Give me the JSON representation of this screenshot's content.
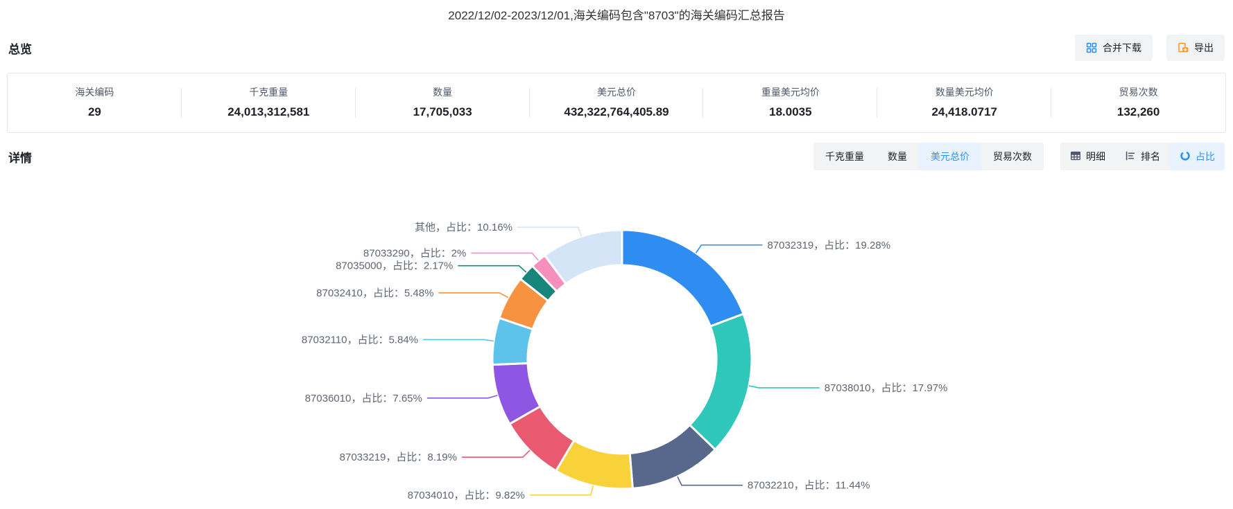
{
  "title": "2022/12/02-2023/12/01,海关编码包含\"8703\"的海关编码汇总报告",
  "overview": {
    "heading": "总览",
    "merge_download_label": "合并下载",
    "export_label": "导出",
    "stats": [
      {
        "label": "海关编码",
        "value": "29"
      },
      {
        "label": "千克重量",
        "value": "24,013,312,581"
      },
      {
        "label": "数量",
        "value": "17,705,033"
      },
      {
        "label": "美元总价",
        "value": "432,322,764,405.89"
      },
      {
        "label": "重量美元均价",
        "value": "18.0035"
      },
      {
        "label": "数量美元均价",
        "value": "24,418.0717"
      },
      {
        "label": "贸易次数",
        "value": "132,260"
      }
    ]
  },
  "detail": {
    "heading": "详情",
    "metric_tabs": [
      {
        "label": "千克重量",
        "active": false
      },
      {
        "label": "数量",
        "active": false
      },
      {
        "label": "美元总价",
        "active": true
      },
      {
        "label": "贸易次数",
        "active": false
      }
    ],
    "view_tabs": [
      {
        "label": "明细",
        "icon": "table-icon",
        "active": false
      },
      {
        "label": "排名",
        "icon": "ranking-icon",
        "active": false
      },
      {
        "label": "占比",
        "icon": "pie-icon",
        "active": true
      }
    ]
  },
  "colors": {
    "accent": "#3491fa",
    "tab_bg": "#f2f3f5",
    "tab_active_bg": "#e8f3ff",
    "card_border": "#e5e6eb",
    "export_icon": "#ff9a2e",
    "chart_label_text": "#5e6673"
  },
  "chart_data": {
    "type": "pie",
    "donut": true,
    "start_angle_deg": 0,
    "clockwise": true,
    "legend_position": "none",
    "value_unit": "percent",
    "slices": [
      {
        "name": "87032319",
        "value": 19.28,
        "color": "#2f8df2",
        "label": "87032319，占比：19.28%"
      },
      {
        "name": "87038010",
        "value": 17.97,
        "color": "#2fc7b9",
        "label": "87038010，占比：17.97%"
      },
      {
        "name": "87032210",
        "value": 11.44,
        "color": "#57688c",
        "label": "87032210，占比：11.44%"
      },
      {
        "name": "87034010",
        "value": 9.82,
        "color": "#f9d239",
        "label": "87034010，占比：9.82%"
      },
      {
        "name": "87033219",
        "value": 8.19,
        "color": "#e95a71",
        "label": "87033219，占比：8.19%"
      },
      {
        "name": "87036010",
        "value": 7.65,
        "color": "#8f55e3",
        "label": "87036010，占比：7.65%"
      },
      {
        "name": "87032110",
        "value": 5.84,
        "color": "#5ec3ea",
        "label": "87032110，占比：5.84%"
      },
      {
        "name": "87032410",
        "value": 5.48,
        "color": "#f79240",
        "label": "87032410，占比：5.48%"
      },
      {
        "name": "87035000",
        "value": 2.17,
        "color": "#17857b",
        "label": "87035000，占比：2.17%"
      },
      {
        "name": "87033290",
        "value": 2,
        "color": "#f78fbe",
        "label": "87033290，占比：2%"
      },
      {
        "name": "其他",
        "value": 10.16,
        "color": "#d6e4f8",
        "label": "其他，占比：10.16%"
      }
    ]
  }
}
